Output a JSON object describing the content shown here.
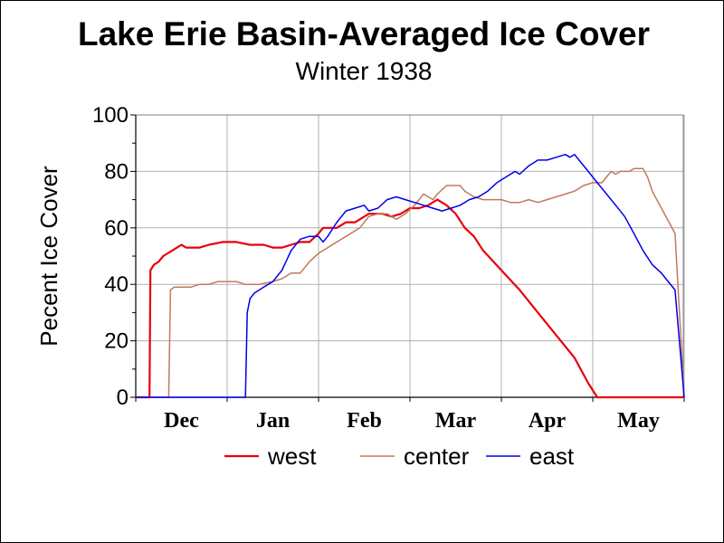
{
  "chart_data": {
    "type": "line",
    "title": "Lake Erie Basin-Averaged Ice Cover",
    "subtitle": "Winter 1938",
    "ylabel": "Pecent Ice Cover",
    "xlabel": "",
    "ylim": [
      0,
      100
    ],
    "yticks": [
      0,
      20,
      40,
      60,
      80,
      100
    ],
    "xlim": [
      0,
      6
    ],
    "month_labels": [
      "Dec",
      "Jan",
      "Feb",
      "Mar",
      "Apr",
      "May"
    ],
    "grid": true,
    "legend_position": "bottom",
    "series": [
      {
        "name": "west",
        "color": "#e8000b",
        "stroke_width": 2.2,
        "points": [
          [
            0,
            0
          ],
          [
            0.15,
            0
          ],
          [
            0.16,
            45
          ],
          [
            0.2,
            47
          ],
          [
            0.25,
            48
          ],
          [
            0.3,
            50
          ],
          [
            0.4,
            52
          ],
          [
            0.5,
            54
          ],
          [
            0.55,
            53
          ],
          [
            0.7,
            53
          ],
          [
            0.8,
            54
          ],
          [
            0.95,
            55
          ],
          [
            1.1,
            55
          ],
          [
            1.25,
            54
          ],
          [
            1.4,
            54
          ],
          [
            1.5,
            53
          ],
          [
            1.6,
            53
          ],
          [
            1.7,
            54
          ],
          [
            1.8,
            55
          ],
          [
            1.9,
            55
          ],
          [
            2.0,
            58
          ],
          [
            2.05,
            60
          ],
          [
            2.2,
            60
          ],
          [
            2.3,
            62
          ],
          [
            2.4,
            62
          ],
          [
            2.5,
            64
          ],
          [
            2.55,
            65
          ],
          [
            2.7,
            65
          ],
          [
            2.8,
            64
          ],
          [
            2.9,
            65
          ],
          [
            3.0,
            67
          ],
          [
            3.1,
            67
          ],
          [
            3.2,
            68
          ],
          [
            3.3,
            70
          ],
          [
            3.4,
            68
          ],
          [
            3.5,
            65
          ],
          [
            3.6,
            60
          ],
          [
            3.7,
            57
          ],
          [
            3.8,
            52
          ],
          [
            4.0,
            45
          ],
          [
            4.2,
            38
          ],
          [
            4.4,
            30
          ],
          [
            4.6,
            22
          ],
          [
            4.8,
            14
          ],
          [
            4.95,
            5
          ],
          [
            5.05,
            0
          ],
          [
            6,
            0
          ]
        ]
      },
      {
        "name": "center",
        "color": "#c07a5a",
        "stroke_width": 1.5,
        "points": [
          [
            0,
            0
          ],
          [
            0.36,
            0
          ],
          [
            0.38,
            38
          ],
          [
            0.42,
            39
          ],
          [
            0.6,
            39
          ],
          [
            0.7,
            40
          ],
          [
            0.8,
            40
          ],
          [
            0.9,
            41
          ],
          [
            1.1,
            41
          ],
          [
            1.2,
            40
          ],
          [
            1.35,
            40
          ],
          [
            1.5,
            41
          ],
          [
            1.6,
            42
          ],
          [
            1.7,
            44
          ],
          [
            1.8,
            44
          ],
          [
            1.9,
            48
          ],
          [
            2.0,
            51
          ],
          [
            2.1,
            53
          ],
          [
            2.2,
            55
          ],
          [
            2.3,
            57
          ],
          [
            2.45,
            60
          ],
          [
            2.55,
            64
          ],
          [
            2.65,
            65
          ],
          [
            2.75,
            65
          ],
          [
            2.85,
            63
          ],
          [
            2.95,
            65
          ],
          [
            3.05,
            68
          ],
          [
            3.15,
            72
          ],
          [
            3.25,
            70
          ],
          [
            3.3,
            72
          ],
          [
            3.4,
            75
          ],
          [
            3.55,
            75
          ],
          [
            3.6,
            73
          ],
          [
            3.7,
            71
          ],
          [
            3.8,
            70
          ],
          [
            4.0,
            70
          ],
          [
            4.1,
            69
          ],
          [
            4.2,
            69
          ],
          [
            4.3,
            70
          ],
          [
            4.4,
            69
          ],
          [
            4.5,
            70
          ],
          [
            4.6,
            71
          ],
          [
            4.7,
            72
          ],
          [
            4.8,
            73
          ],
          [
            4.9,
            75
          ],
          [
            5.0,
            76
          ],
          [
            5.1,
            76
          ],
          [
            5.15,
            78
          ],
          [
            5.2,
            80
          ],
          [
            5.25,
            79
          ],
          [
            5.3,
            80
          ],
          [
            5.4,
            80
          ],
          [
            5.45,
            81
          ],
          [
            5.55,
            81
          ],
          [
            5.6,
            78
          ],
          [
            5.65,
            73
          ],
          [
            5.75,
            67
          ],
          [
            5.9,
            58
          ],
          [
            6,
            0
          ]
        ]
      },
      {
        "name": "east",
        "color": "#0000e8",
        "stroke_width": 1.5,
        "points": [
          [
            0,
            0
          ],
          [
            1.2,
            0
          ],
          [
            1.22,
            30
          ],
          [
            1.25,
            35
          ],
          [
            1.3,
            37
          ],
          [
            1.4,
            39
          ],
          [
            1.5,
            41
          ],
          [
            1.6,
            45
          ],
          [
            1.7,
            52
          ],
          [
            1.8,
            56
          ],
          [
            1.9,
            57
          ],
          [
            2.0,
            57
          ],
          [
            2.05,
            55
          ],
          [
            2.1,
            57
          ],
          [
            2.2,
            62
          ],
          [
            2.3,
            66
          ],
          [
            2.4,
            67
          ],
          [
            2.5,
            68
          ],
          [
            2.55,
            66
          ],
          [
            2.65,
            67
          ],
          [
            2.75,
            70
          ],
          [
            2.85,
            71
          ],
          [
            2.95,
            70
          ],
          [
            3.05,
            69
          ],
          [
            3.15,
            68
          ],
          [
            3.25,
            67
          ],
          [
            3.35,
            66
          ],
          [
            3.45,
            67
          ],
          [
            3.55,
            68
          ],
          [
            3.65,
            70
          ],
          [
            3.75,
            71
          ],
          [
            3.85,
            73
          ],
          [
            3.95,
            76
          ],
          [
            4.05,
            78
          ],
          [
            4.15,
            80
          ],
          [
            4.2,
            79
          ],
          [
            4.3,
            82
          ],
          [
            4.4,
            84
          ],
          [
            4.5,
            84
          ],
          [
            4.6,
            85
          ],
          [
            4.7,
            86
          ],
          [
            4.75,
            85
          ],
          [
            4.8,
            86
          ],
          [
            4.85,
            84
          ],
          [
            4.95,
            80
          ],
          [
            5.05,
            76
          ],
          [
            5.15,
            72
          ],
          [
            5.25,
            68
          ],
          [
            5.35,
            64
          ],
          [
            5.45,
            58
          ],
          [
            5.55,
            52
          ],
          [
            5.65,
            47
          ],
          [
            5.75,
            44
          ],
          [
            5.8,
            42
          ],
          [
            5.9,
            38
          ],
          [
            6,
            0
          ]
        ]
      }
    ]
  }
}
